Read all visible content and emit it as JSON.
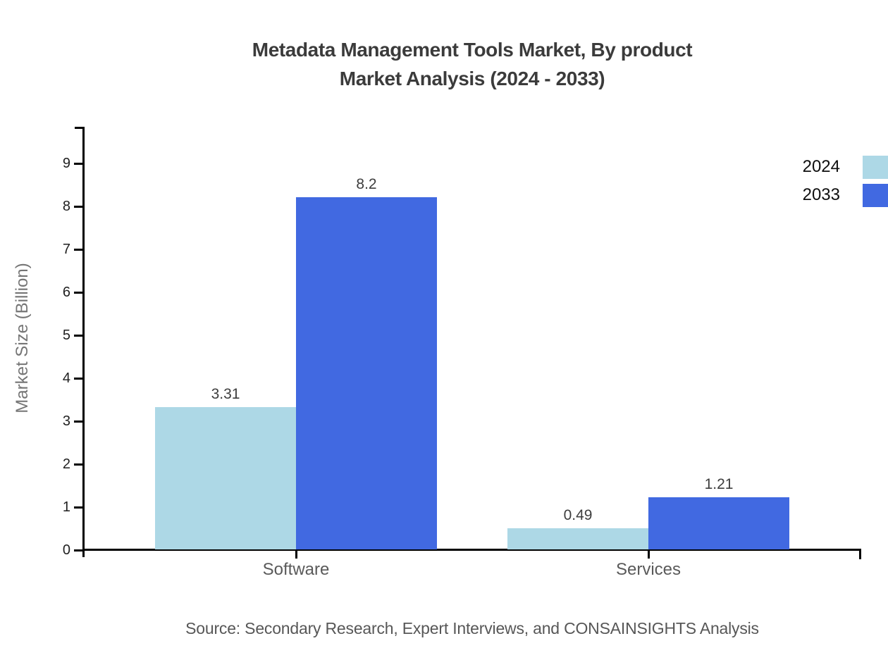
{
  "title": {
    "line1": "Metadata Management Tools Market, By product",
    "line2": "Market Analysis (2024 - 2033)"
  },
  "source": "Source: Secondary Research, Expert Interviews, and CONSAINSIGHTS Analysis",
  "chart_data": {
    "type": "bar",
    "categories": [
      "Software",
      "Services"
    ],
    "series": [
      {
        "name": "2024",
        "color": "#ADD8E6",
        "values": [
          3.31,
          0.49
        ]
      },
      {
        "name": "2033",
        "color": "#4169E1",
        "values": [
          8.2,
          1.21
        ]
      }
    ],
    "value_labels": [
      "3.31",
      "8.2",
      "0.49",
      "1.21"
    ],
    "title": "Metadata Management Tools Market, By product Market Analysis (2024 - 2033)",
    "xlabel": "",
    "ylabel": "Market Size (Billion)",
    "ylim": [
      0,
      9.85
    ],
    "yticks": [
      0,
      1,
      2,
      3,
      4,
      5,
      6,
      7,
      8,
      9
    ],
    "grid": false,
    "legend_position": "top-right",
    "axis_color": "#000000",
    "text_colors": {
      "title": "#3b3b3b",
      "tick_labels": "#1f1f1f",
      "category_labels": "#5a5a5a",
      "value_labels": "#3d3d3d",
      "axis_title": "#757575",
      "source": "#575757",
      "legend": "#0f0f0f"
    }
  }
}
